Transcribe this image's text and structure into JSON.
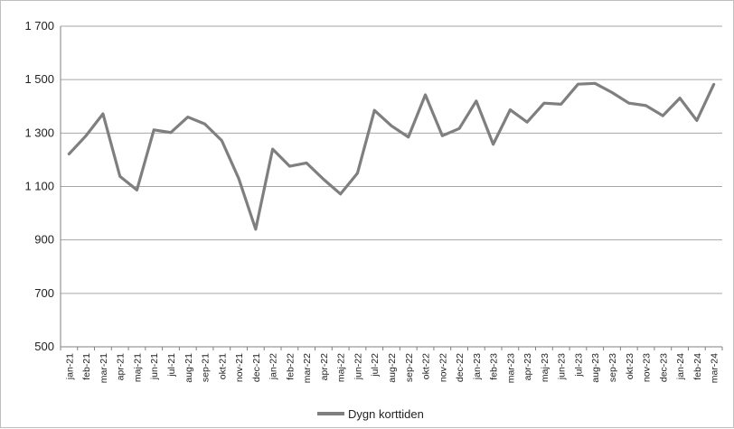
{
  "chart_data": {
    "type": "line",
    "categories": [
      "jan-21",
      "feb-21",
      "mar-21",
      "apr-21",
      "maj-21",
      "jun-21",
      "jul-21",
      "aug-21",
      "sep-21",
      "okt-21",
      "nov-21",
      "dec-21",
      "jan-22",
      "feb-22",
      "mar-22",
      "apr-22",
      "maj-22",
      "jun-22",
      "jul-22",
      "aug-22",
      "sep-22",
      "okt-22",
      "nov-22",
      "dec-22",
      "jan-23",
      "feb-23",
      "mar-23",
      "apr-23",
      "maj-23",
      "jun-23",
      "jul-23",
      "aug-23",
      "sep-23",
      "okt-23",
      "nov-23",
      "dec-23",
      "jan-24",
      "feb-24",
      "mar-24"
    ],
    "series": [
      {
        "name": "Dygn korttiden",
        "color": "#7f7f7f",
        "values": [
          1222,
          1290,
          1372,
          1138,
          1087,
          1312,
          1302,
          1360,
          1334,
          1272,
          1130,
          940,
          1240,
          1176,
          1188,
          1127,
          1072,
          1150,
          1385,
          1327,
          1285,
          1443,
          1290,
          1317,
          1420,
          1258,
          1387,
          1341,
          1412,
          1408,
          1483,
          1486,
          1452,
          1412,
          1403,
          1365,
          1431,
          1347,
          1482
        ]
      }
    ],
    "ylim": [
      500,
      1700
    ],
    "yticks": [
      500,
      700,
      900,
      1100,
      1300,
      1500,
      1700
    ],
    "ytick_labels": [
      "500",
      "700",
      "900",
      "1 100",
      "1 300",
      "1 500",
      "1 700"
    ],
    "grid": true,
    "legend": {
      "position": "bottom",
      "label": "Dygn korttiden"
    },
    "title": "",
    "xlabel": "",
    "ylabel": ""
  }
}
